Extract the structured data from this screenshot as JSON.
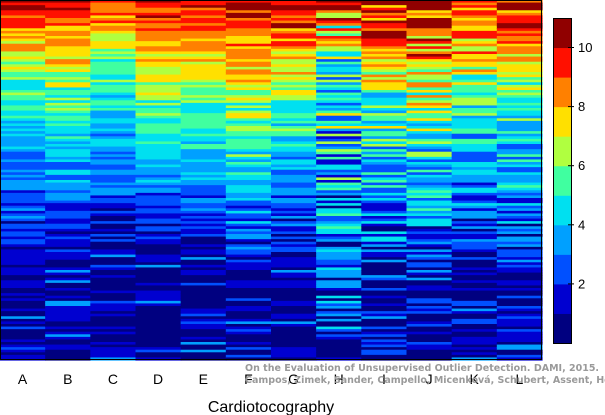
{
  "chart_data": {
    "type": "heatmap",
    "title": "",
    "xlabel": "Cardiotocography",
    "ylabel": "",
    "categories": [
      "A",
      "B",
      "C",
      "D",
      "E",
      "F",
      "G",
      "H",
      "I",
      "J",
      "K",
      "L"
    ],
    "colorbar": {
      "range": [
        0,
        11
      ],
      "ticks": [
        "2",
        "4",
        "6",
        "8",
        "10"
      ],
      "colors": [
        "#000080",
        "#0000d0",
        "#0050ff",
        "#00a0ff",
        "#00e0f0",
        "#40ffa0",
        "#b0ff40",
        "#ffe000",
        "#ff8000",
        "#ff1000",
        "#900000"
      ]
    },
    "row_count": 140,
    "column_profiles": [
      {
        "name": "A",
        "high_fraction": 0.22,
        "tail_end": 0.72,
        "noise": 1.2
      },
      {
        "name": "B",
        "high_fraction": 0.26,
        "tail_end": 0.74,
        "noise": 1.2
      },
      {
        "name": "C",
        "high_fraction": 0.18,
        "tail_end": 0.68,
        "noise": 1.2
      },
      {
        "name": "D",
        "high_fraction": 0.3,
        "tail_end": 0.7,
        "noise": 1.0
      },
      {
        "name": "E",
        "high_fraction": 0.32,
        "tail_end": 0.7,
        "noise": 1.0
      },
      {
        "name": "F",
        "high_fraction": 0.36,
        "tail_end": 0.78,
        "noise": 1.6
      },
      {
        "name": "G",
        "high_fraction": 0.3,
        "tail_end": 0.72,
        "noise": 1.4
      },
      {
        "name": "H",
        "high_fraction": 0.12,
        "tail_end": 1.0,
        "noise": 3.0
      },
      {
        "name": "I",
        "high_fraction": 0.3,
        "tail_end": 0.82,
        "noise": 2.4
      },
      {
        "name": "J",
        "high_fraction": 0.36,
        "tail_end": 0.8,
        "noise": 2.2
      },
      {
        "name": "K",
        "high_fraction": 0.24,
        "tail_end": 0.74,
        "noise": 2.0
      },
      {
        "name": "L",
        "high_fraction": 0.28,
        "tail_end": 0.78,
        "noise": 1.8
      }
    ]
  },
  "credit": {
    "line1": "On the Evaluation of Unsupervised Outlier Detection. DAMI, 2015.",
    "line2": "Campos, Zimek, Sander, Campello, Micenková, Schubert, Assent, Houle"
  }
}
